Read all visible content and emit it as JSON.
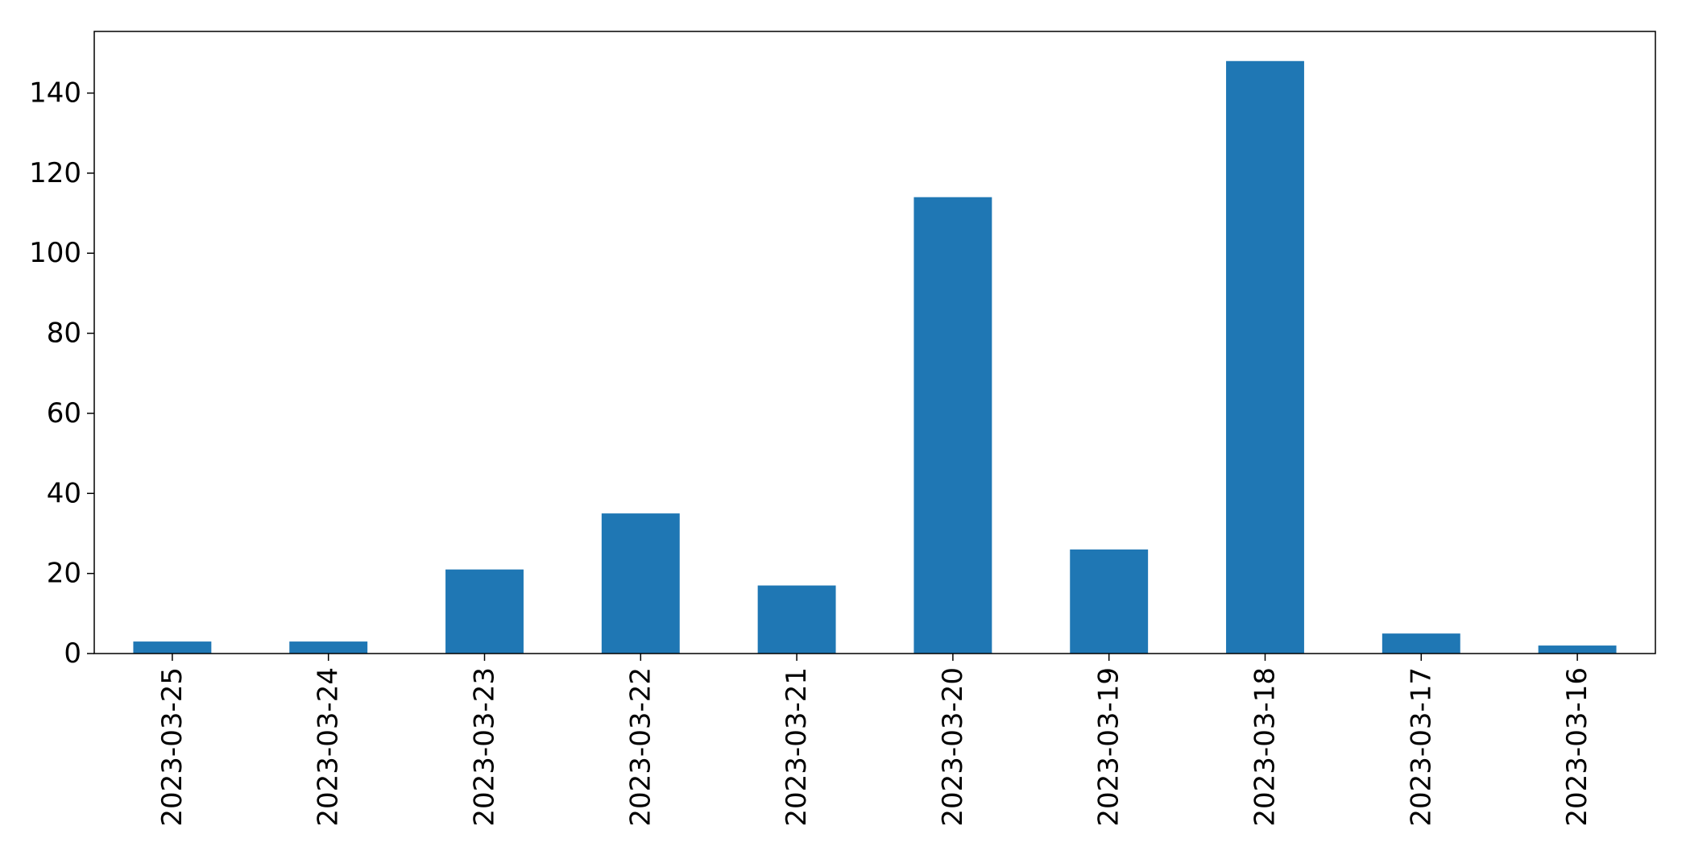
{
  "chart_data": {
    "type": "bar",
    "title": "",
    "xlabel": "",
    "ylabel": "",
    "categories": [
      "2023-03-25",
      "2023-03-24",
      "2023-03-23",
      "2023-03-22",
      "2023-03-21",
      "2023-03-20",
      "2023-03-19",
      "2023-03-18",
      "2023-03-17",
      "2023-03-16"
    ],
    "values": [
      3,
      3,
      21,
      35,
      17,
      114,
      26,
      148,
      5,
      2
    ],
    "ylim": [
      0,
      155.4
    ],
    "yticks": [
      0,
      20,
      40,
      60,
      80,
      100,
      120,
      140
    ],
    "ytick_labels": [
      "0",
      "20",
      "40",
      "60",
      "80",
      "100",
      "120",
      "140"
    ],
    "grid": false,
    "legend": false,
    "bar_color": "#1f77b4",
    "axis_color": "#000000"
  }
}
